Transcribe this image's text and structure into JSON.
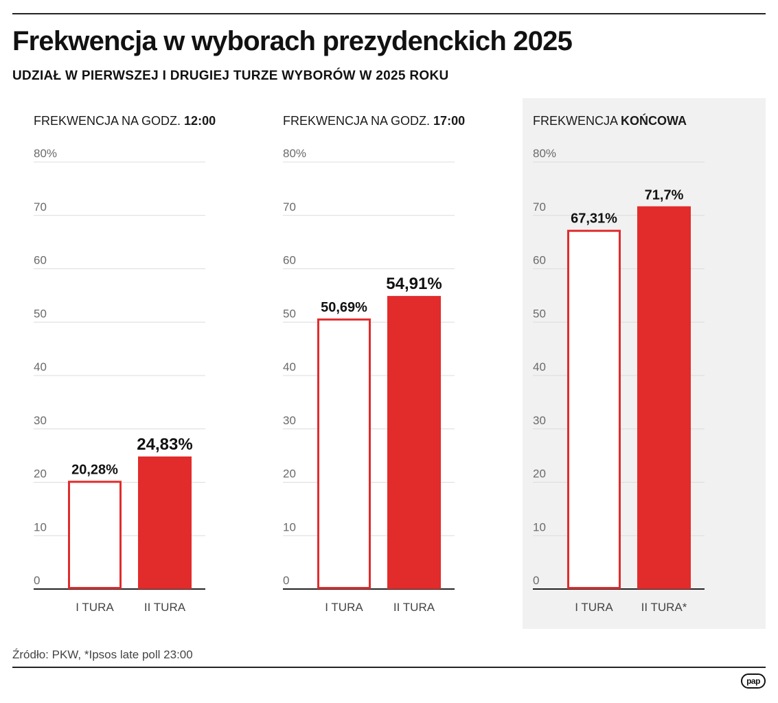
{
  "header": {
    "title": "Frekwencja w wyborach prezydenckich 2025",
    "subtitle": "UDZIAŁ W PIERWSZEJ I DRUGIEJ TURZE WYBORÓW W 2025 ROKU"
  },
  "colors": {
    "accent": "#e22b2b",
    "grid": "#dcdcdc",
    "panel_highlight": "#f1f1f1"
  },
  "chart_data": [
    {
      "type": "bar",
      "title_prefix": "FREKWENCJA NA GODZ.",
      "title_emphasis": "12:00",
      "categories": [
        "I TURA",
        "II TURA"
      ],
      "values": [
        20.28,
        24.83
      ],
      "value_labels": [
        "20,28%",
        "24,83%"
      ],
      "ylim": [
        0,
        80
      ],
      "yticks": [
        0,
        10,
        20,
        30,
        40,
        50,
        60,
        70,
        80
      ],
      "ytick_labels": [
        "0",
        "10",
        "20",
        "30",
        "40",
        "50",
        "60",
        "70",
        "80%"
      ],
      "styles": [
        "outline",
        "filled"
      ],
      "grid": true
    },
    {
      "type": "bar",
      "title_prefix": "FREKWENCJA NA GODZ.",
      "title_emphasis": "17:00",
      "categories": [
        "I TURA",
        "II TURA"
      ],
      "values": [
        50.69,
        54.91
      ],
      "value_labels": [
        "50,69%",
        "54,91%"
      ],
      "ylim": [
        0,
        80
      ],
      "yticks": [
        0,
        10,
        20,
        30,
        40,
        50,
        60,
        70,
        80
      ],
      "ytick_labels": [
        "0",
        "10",
        "20",
        "30",
        "40",
        "50",
        "60",
        "70",
        "80%"
      ],
      "styles": [
        "outline",
        "filled"
      ],
      "grid": true
    },
    {
      "type": "bar",
      "title_prefix": "FREKWENCJA",
      "title_emphasis": "KOŃCOWA",
      "categories": [
        "I TURA",
        "II TURA*"
      ],
      "values": [
        67.31,
        71.7
      ],
      "value_labels": [
        "67,31%",
        "71,7%"
      ],
      "ylim": [
        0,
        80
      ],
      "yticks": [
        0,
        10,
        20,
        30,
        40,
        50,
        60,
        70,
        80
      ],
      "ytick_labels": [
        "0",
        "10",
        "20",
        "30",
        "40",
        "50",
        "60",
        "70",
        "80%"
      ],
      "styles": [
        "outline",
        "filled"
      ],
      "grid": true,
      "highlighted": true
    }
  ],
  "footer": {
    "source": "Źródło: PKW, *Ipsos late poll 23:00",
    "logo_text": "pap"
  }
}
